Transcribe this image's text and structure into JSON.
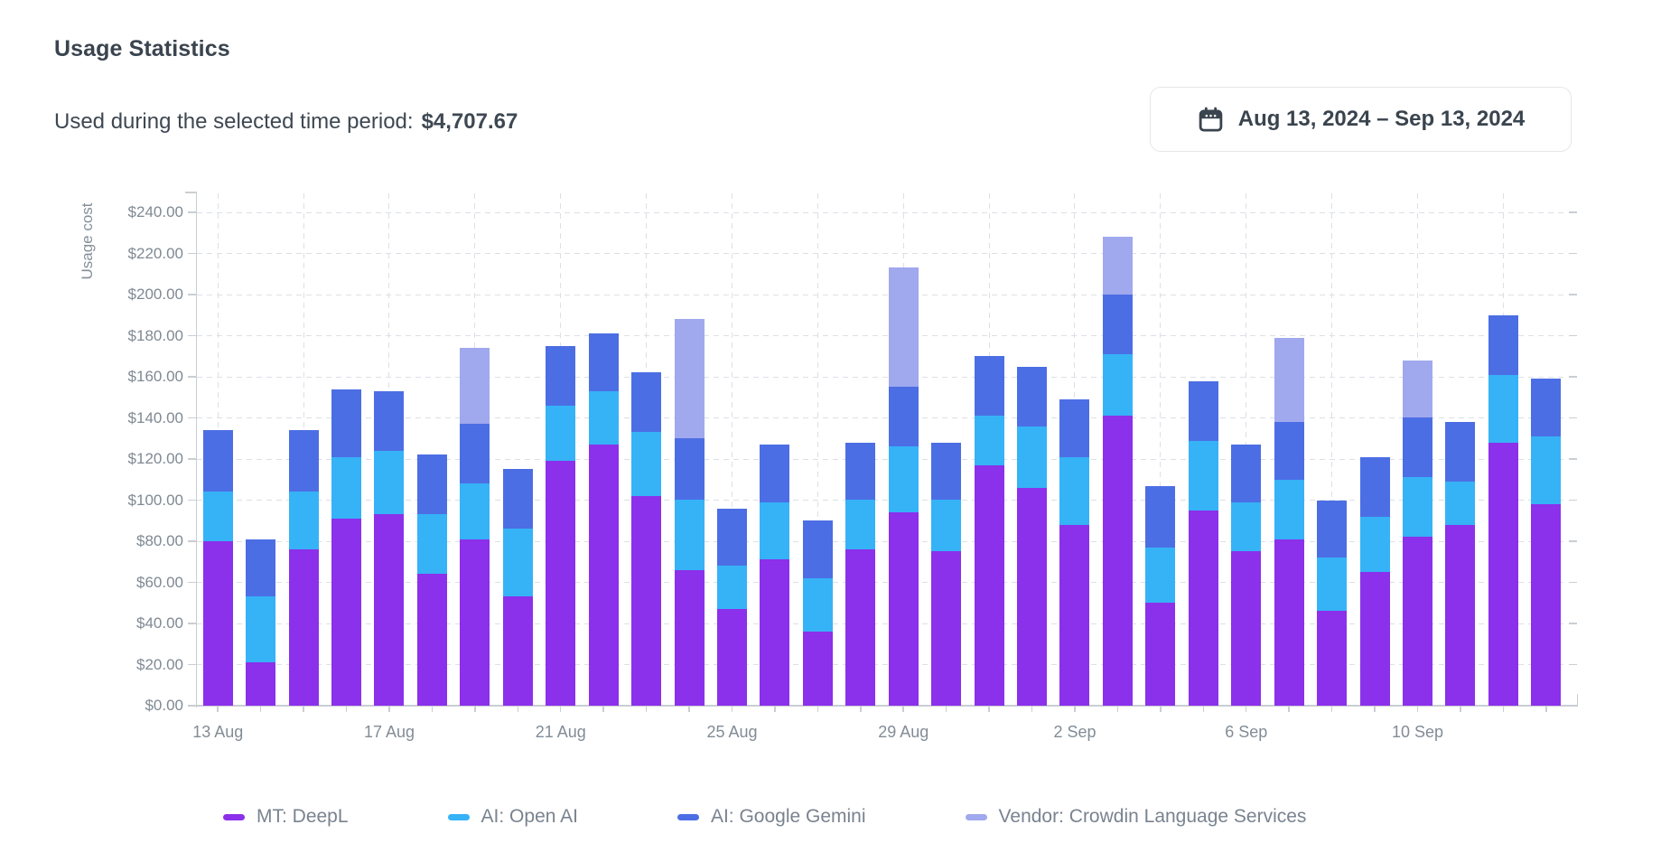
{
  "header": {
    "title": "Usage Statistics",
    "summary_label": "Used during the selected time period:",
    "summary_value": "$4,707.67",
    "date_range": {
      "icon": "calendar-icon",
      "label": "Aug 13, 2024 – Sep 13, 2024"
    }
  },
  "chart_data": {
    "type": "bar",
    "stacked": true,
    "title": "",
    "xlabel": "",
    "ylabel": "Usage cost",
    "ylim": [
      0,
      240
    ],
    "ytick_step": 20,
    "ytick_prefix": "$",
    "grid": true,
    "legend_position": "bottom",
    "categories": [
      "13 Aug",
      "14 Aug",
      "15 Aug",
      "16 Aug",
      "17 Aug",
      "18 Aug",
      "19 Aug",
      "20 Aug",
      "21 Aug",
      "22 Aug",
      "23 Aug",
      "24 Aug",
      "25 Aug",
      "26 Aug",
      "27 Aug",
      "28 Aug",
      "29 Aug",
      "30 Aug",
      "31 Aug",
      "1 Sep",
      "2 Sep",
      "3 Sep",
      "4 Sep",
      "5 Sep",
      "6 Sep",
      "7 Sep",
      "8 Sep",
      "9 Sep",
      "10 Sep",
      "11 Sep",
      "12 Sep",
      "13 Sep"
    ],
    "xtick_labels": [
      "13 Aug",
      "17 Aug",
      "21 Aug",
      "25 Aug",
      "29 Aug",
      "2 Sep",
      "6 Sep",
      "10 Sep"
    ],
    "xtick_indices": [
      0,
      4,
      8,
      12,
      16,
      20,
      24,
      28
    ],
    "series": [
      {
        "name": "MT: DeepL",
        "color": "#8b30eb",
        "values": [
          80,
          21,
          76,
          91,
          93,
          64,
          81,
          53,
          119,
          127,
          102,
          66,
          47,
          71,
          36,
          76,
          94,
          75,
          117,
          106,
          88,
          141,
          50,
          95,
          75,
          81,
          46,
          65,
          82,
          88,
          128,
          98
        ]
      },
      {
        "name": "AI: Open AI",
        "color": "#36b2f7",
        "values": [
          24,
          32,
          28,
          30,
          31,
          29,
          27,
          33,
          27,
          26,
          31,
          34,
          21,
          28,
          26,
          24,
          32,
          25,
          24,
          30,
          33,
          30,
          27,
          34,
          24,
          29,
          26,
          27,
          29,
          21,
          33,
          33
        ]
      },
      {
        "name": "AI: Google Gemini",
        "color": "#4c6ee4",
        "values": [
          30,
          28,
          30,
          33,
          29,
          29,
          29,
          29,
          29,
          28,
          29,
          30,
          28,
          28,
          28,
          28,
          29,
          28,
          29,
          29,
          28,
          29,
          30,
          29,
          28,
          28,
          28,
          29,
          29,
          29,
          29,
          28
        ]
      },
      {
        "name": "Vendor: Crowdin Language Services",
        "color": "#a0a8ee",
        "values": [
          0,
          0,
          0,
          0,
          0,
          0,
          37,
          0,
          0,
          0,
          0,
          58,
          0,
          0,
          0,
          0,
          58,
          0,
          0,
          0,
          0,
          28,
          0,
          0,
          0,
          41,
          0,
          0,
          28,
          0,
          0,
          0
        ]
      }
    ]
  },
  "colors": {
    "axis": "#c9ced4",
    "grid": "#dce0e5",
    "text_dark": "#3a444e",
    "text_gray": "#808a94",
    "button_border": "#e4e7ea"
  }
}
